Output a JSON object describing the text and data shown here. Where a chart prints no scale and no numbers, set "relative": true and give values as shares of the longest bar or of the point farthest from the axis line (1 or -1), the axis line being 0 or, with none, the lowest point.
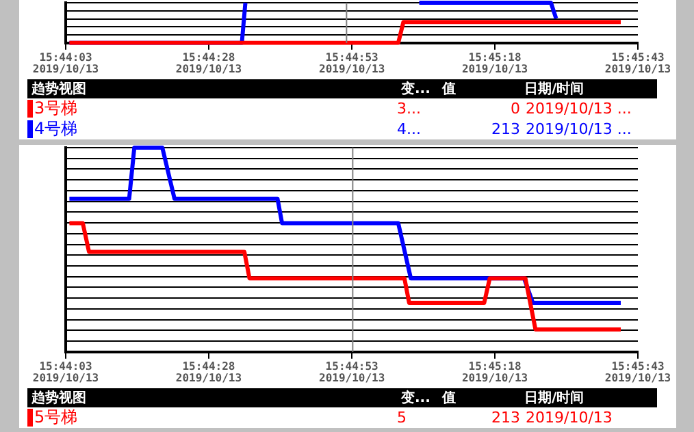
{
  "chart_data": [
    {
      "type": "line",
      "relative": true,
      "grid": "y",
      "legend": "bottom",
      "xlim": [
        15.73417,
        15.76194
      ],
      "xticks": [
        {
          "value": 15.73417,
          "label": "15:44:03"
        },
        {
          "value": 15.74111,
          "label": "15:44:28"
        },
        {
          "value": 15.74806,
          "label": "15:44:53"
        },
        {
          "value": 15.755,
          "label": "15:45:18"
        },
        {
          "value": 15.76194,
          "label": "15:45:43"
        }
      ],
      "ref_lines": [
        {
          "axis": "x",
          "value": 15.7478,
          "color": "#808080"
        }
      ],
      "series": [
        {
          "name": "3号梯",
          "color": "#ff0000",
          "x": [
            15.73435,
            15.75031,
            15.75056,
            15.76111
          ],
          "values": [
            0,
            0,
            0.52,
            0.52
          ]
        },
        {
          "name": "4号梯",
          "color": "#0000ff",
          "x": [
            15.73435,
            15.74272,
            15.74289,
            15.743,
            15.75133,
            15.75772,
            15.75797
          ],
          "values": [
            0,
            0,
            1,
            null,
            1,
            1,
            0.61
          ]
        }
      ],
      "annotations": [
        "趋势视图",
        "变...",
        "值",
        "日期/时间",
        "3...",
        "0",
        "2019/10/13 ...",
        "4...",
        "213",
        "2019/10/13 ...",
        "2019/10/13",
        "2019/10/13",
        "2019/10/13",
        "2019/10/13",
        "2019/10/13"
      ]
    },
    {
      "type": "line",
      "relative": true,
      "grid": "y",
      "legend": "bottom",
      "xlim": [
        15.73417,
        15.76194
      ],
      "xticks": [
        {
          "value": 15.73417,
          "label": "15:44:03"
        },
        {
          "value": 15.74111,
          "label": "15:44:28"
        },
        {
          "value": 15.74806,
          "label": "15:44:53"
        },
        {
          "value": 15.755,
          "label": "15:45:18"
        },
        {
          "value": 15.76194,
          "label": "15:45:43"
        }
      ],
      "ref_lines": [
        {
          "axis": "x",
          "value": 15.7481,
          "color": "#808080"
        }
      ],
      "series": [
        {
          "name": "5号梯",
          "color": "#ff0000",
          "x": [
            15.73435,
            15.735,
            15.7353,
            15.74284,
            15.74309,
            15.75061,
            15.75084,
            15.75448,
            15.75475,
            15.75648,
            15.75697,
            15.76111
          ],
          "values": [
            0.63,
            0.63,
            0.49,
            0.49,
            0.36,
            0.36,
            0.24,
            0.24,
            0.36,
            0.36,
            0.11,
            0.11
          ]
        },
        {
          "color": "#0000ff",
          "x": [
            15.73435,
            15.73725,
            15.7375,
            15.73886,
            15.73945,
            15.74445,
            15.74467,
            15.75031,
            15.75092,
            15.75642,
            15.75684,
            15.76111
          ],
          "values": [
            0.75,
            0.75,
            1,
            1,
            0.75,
            0.75,
            0.63,
            0.63,
            0.36,
            0.36,
            0.24,
            0.24
          ]
        }
      ],
      "annotations": [
        "趋势视图",
        "变...",
        "值",
        "日期/时间",
        "5",
        "213",
        "2019/10/13",
        "2019/10/13",
        "2019/10/13",
        "2019/10/13",
        "2019/10/13",
        "2019/10/13"
      ]
    }
  ]
}
